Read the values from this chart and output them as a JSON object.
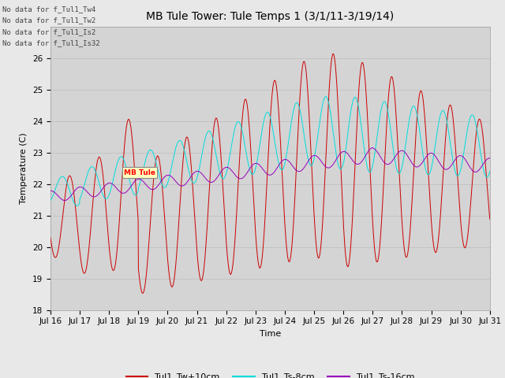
{
  "title": "MB Tule Tower: Tule Temps 1 (3/1/11-3/19/14)",
  "xlabel": "Time",
  "ylabel": "Temperature (C)",
  "ylim": [
    18.0,
    27.0
  ],
  "yticks": [
    18.0,
    19.0,
    20.0,
    21.0,
    22.0,
    23.0,
    24.0,
    25.0,
    26.0
  ],
  "xtick_labels": [
    "Jul 16",
    "Jul 17",
    "Jul 18",
    "Jul 19",
    "Jul 20",
    "Jul 21",
    "Jul 22",
    "Jul 23",
    "Jul 24",
    "Jul 25",
    "Jul 26",
    "Jul 27",
    "Jul 28",
    "Jul 29",
    "Jul 30",
    "Jul 31"
  ],
  "color_tw": "#cc0000",
  "color_ts8": "#00dddd",
  "color_ts16": "#9900bb",
  "legend_labels": [
    "Tul1_Tw+10cm",
    "Tul1_Ts-8cm",
    "Tul1_Ts-16cm"
  ],
  "no_data_texts": [
    "No data for f_Tul1_Tw4",
    "No data for f_Tul1_Tw2",
    "No data for f_Tul1_Is2",
    "No data for f_Tul1_Is32"
  ],
  "fig_bg": "#e8e8e8",
  "plot_bg": "#d4d4d4",
  "title_fontsize": 10,
  "axis_fontsize": 8,
  "tick_fontsize": 7.5
}
